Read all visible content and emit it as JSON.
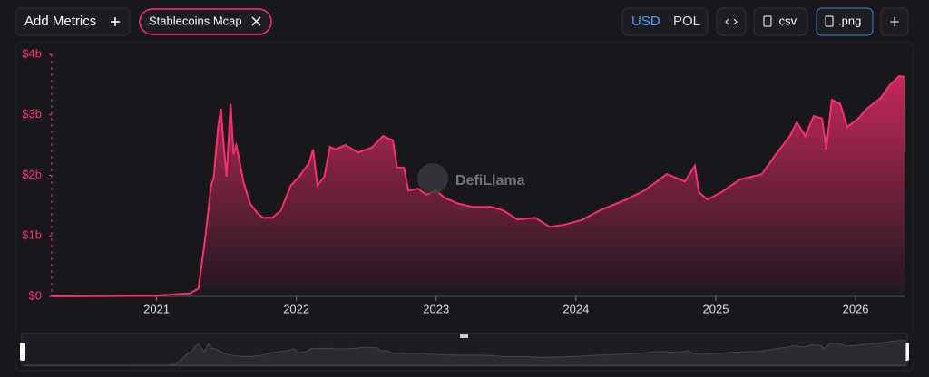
{
  "header": {
    "add_metrics": "Add Metrics",
    "metric_tag": "Stablecoins Mcap",
    "currencies": [
      "USD",
      "POL"
    ],
    "csv": ".csv",
    "png": ".png"
  },
  "watermark": "DefiLlama",
  "chart_data": {
    "type": "area",
    "color": "#ff2d6f",
    "x": [
      2020.25,
      2020.98,
      2021.24,
      2021.3,
      2021.32,
      2021.35,
      2021.39,
      2021.41,
      2021.44,
      2021.46,
      2021.48,
      2021.5,
      2021.53,
      2021.55,
      2021.57,
      2021.59,
      2021.62,
      2021.67,
      2021.72,
      2021.76,
      2021.83,
      2021.89,
      2021.96,
      2022.02,
      2022.09,
      2022.12,
      2022.15,
      2022.2,
      2022.24,
      2022.28,
      2022.35,
      2022.44,
      2022.54,
      2022.62,
      2022.69,
      2022.72,
      2022.77,
      2022.8,
      2022.87,
      2022.93,
      2023.0,
      2023.06,
      2023.16,
      2023.26,
      2023.39,
      2023.48,
      2023.58,
      2023.71,
      2023.81,
      2023.91,
      2024.04,
      2024.17,
      2024.36,
      2024.49,
      2024.65,
      2024.78,
      2024.85,
      2024.88,
      2024.94,
      2025.04,
      2025.17,
      2025.33,
      2025.43,
      2025.53,
      2025.58,
      2025.64,
      2025.7,
      2025.76,
      2025.79,
      2025.83,
      2025.89,
      2025.94,
      2026.02,
      2026.08,
      2026.18,
      2026.24,
      2026.31,
      2026.35
    ],
    "values": [
      0,
      0.01,
      0.05,
      0.13,
      0.48,
      1.0,
      1.83,
      1.98,
      2.8,
      3.1,
      2.5,
      1.98,
      3.18,
      2.35,
      2.5,
      2.28,
      1.9,
      1.53,
      1.38,
      1.3,
      1.3,
      1.42,
      1.83,
      1.98,
      2.2,
      2.43,
      1.83,
      1.98,
      2.47,
      2.43,
      2.5,
      2.38,
      2.46,
      2.65,
      2.58,
      2.13,
      2.13,
      1.75,
      1.78,
      1.68,
      1.75,
      1.63,
      1.53,
      1.48,
      1.48,
      1.42,
      1.27,
      1.3,
      1.15,
      1.18,
      1.26,
      1.42,
      1.6,
      1.75,
      2.02,
      1.9,
      2.16,
      1.72,
      1.6,
      1.72,
      1.93,
      2.02,
      2.35,
      2.65,
      2.88,
      2.65,
      2.98,
      2.94,
      2.43,
      3.25,
      3.18,
      2.8,
      2.94,
      3.1,
      3.28,
      3.48,
      3.64,
      3.63
    ],
    "xlim": [
      2020.25,
      2026.35
    ],
    "xticks": [
      2021,
      2022,
      2023,
      2024,
      2025,
      2026
    ],
    "ylim": [
      0,
      4
    ],
    "yticks": [
      {
        "value": 0,
        "label": "$0"
      },
      {
        "value": 1,
        "label": "$1b"
      },
      {
        "value": 2,
        "label": "$2b"
      },
      {
        "value": 3,
        "label": "$3b"
      },
      {
        "value": 4,
        "label": "$4b"
      }
    ]
  }
}
